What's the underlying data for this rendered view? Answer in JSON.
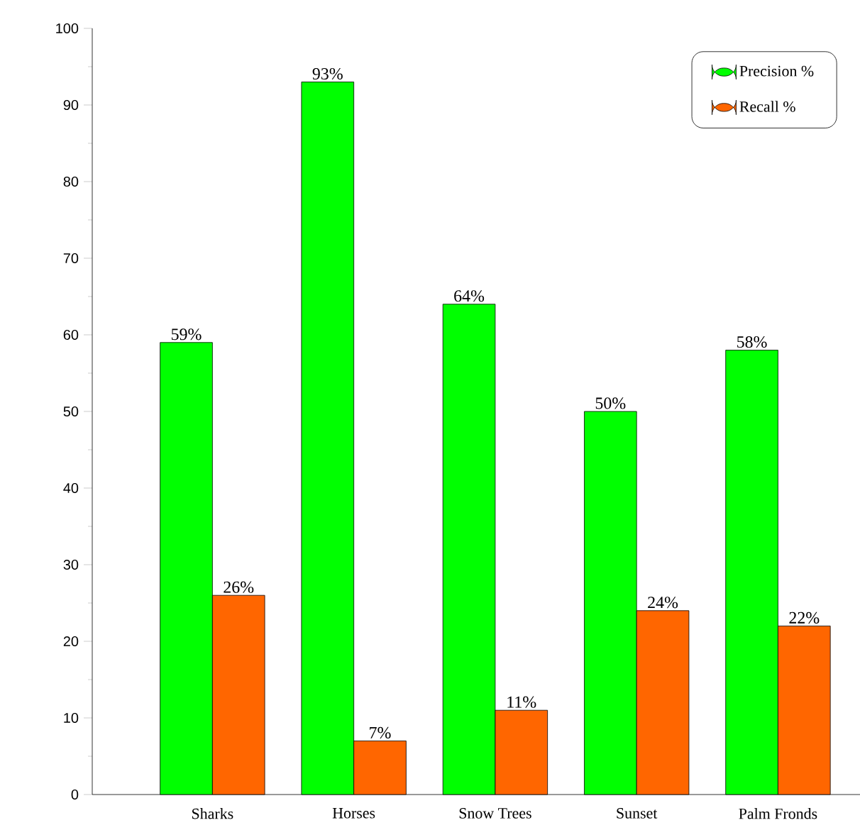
{
  "chart_data": {
    "type": "bar",
    "categories": [
      "Sharks",
      "Horses",
      "Snow Trees",
      "Sunset",
      "Palm Fronds"
    ],
    "series": [
      {
        "name": "Precision %",
        "color": "#00ff00",
        "values": [
          59,
          93,
          64,
          50,
          58
        ],
        "value_labels": [
          "59%",
          "93%",
          "64%",
          "50%",
          "58%"
        ]
      },
      {
        "name": "Recall %",
        "color": "#ff6600",
        "values": [
          26,
          7,
          11,
          24,
          22
        ],
        "value_labels": [
          "26%",
          "7%",
          "11%",
          "24%",
          "22%"
        ]
      }
    ],
    "ylim": [
      0,
      100
    ],
    "yticks": [
      0,
      10,
      20,
      30,
      40,
      50,
      60,
      70,
      80,
      90,
      100
    ],
    "grid": false,
    "legend": "top right"
  }
}
